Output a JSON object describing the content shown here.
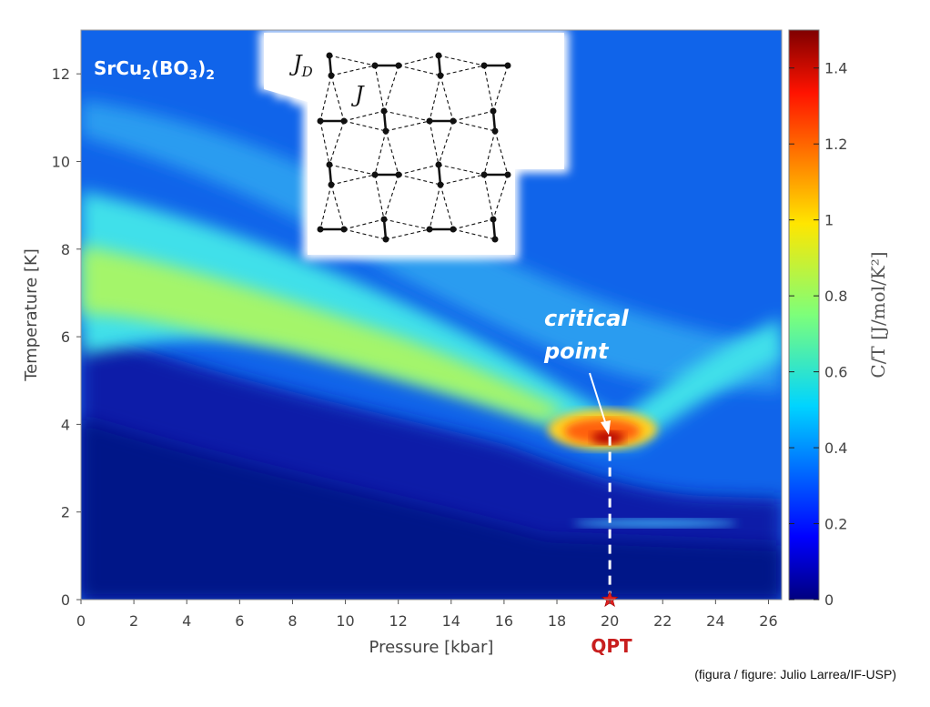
{
  "chart_data": {
    "type": "heatmap",
    "title": "SrCu2(BO3)2",
    "title_parts": {
      "base1": "SrCu",
      "sub1": "2",
      "base2": "(BO",
      "sub2": "3",
      "base3": ")",
      "sub3": "2"
    },
    "xlabel": "Pressure [kbar]",
    "ylabel": "Temperature [K]",
    "xlim": [
      0,
      26.5
    ],
    "ylim": [
      0,
      13
    ],
    "x_ticks": [
      0,
      2,
      4,
      6,
      8,
      10,
      12,
      14,
      16,
      18,
      20,
      22,
      24,
      26
    ],
    "y_ticks": [
      0,
      2,
      4,
      6,
      8,
      10,
      12
    ],
    "colorbar": {
      "label": "C/T [J/mol/K²]",
      "range": [
        0,
        1.5
      ],
      "ticks": [
        0,
        0.2,
        0.4,
        0.6,
        0.8,
        1,
        1.2,
        1.4
      ],
      "colormap": "jet"
    },
    "ridge": [
      {
        "pressure": 0,
        "temperature": 7.6,
        "ct": 0.72
      },
      {
        "pressure": 4,
        "temperature": 7.1,
        "ct": 0.62
      },
      {
        "pressure": 8,
        "temperature": 6.3,
        "ct": 0.55
      },
      {
        "pressure": 12,
        "temperature": 5.4,
        "ct": 0.52
      },
      {
        "pressure": 16,
        "temperature": 4.5,
        "ct": 0.62
      },
      {
        "pressure": 18.5,
        "temperature": 3.9,
        "ct": 1.1
      },
      {
        "pressure": 20,
        "temperature": 3.6,
        "ct": 1.45
      },
      {
        "pressure": 21.5,
        "temperature": 3.9,
        "ct": 1.1
      },
      {
        "pressure": 24,
        "temperature": 4.6,
        "ct": 0.55
      },
      {
        "pressure": 26.5,
        "temperature": 5.5,
        "ct": 0.45
      }
    ],
    "critical_point": {
      "pressure": 20,
      "temperature": 3.6
    },
    "qpt": {
      "pressure": 20,
      "temperature": 0
    },
    "annotations": {
      "critical_line1": "critical",
      "critical_line2": "point",
      "qpt_label": "QPT"
    },
    "inset_labels": {
      "jd_base": "J",
      "jd_sub": "D",
      "j": "J"
    }
  },
  "credit": "(figura / figure: Julio Larrea/IF-USP)"
}
